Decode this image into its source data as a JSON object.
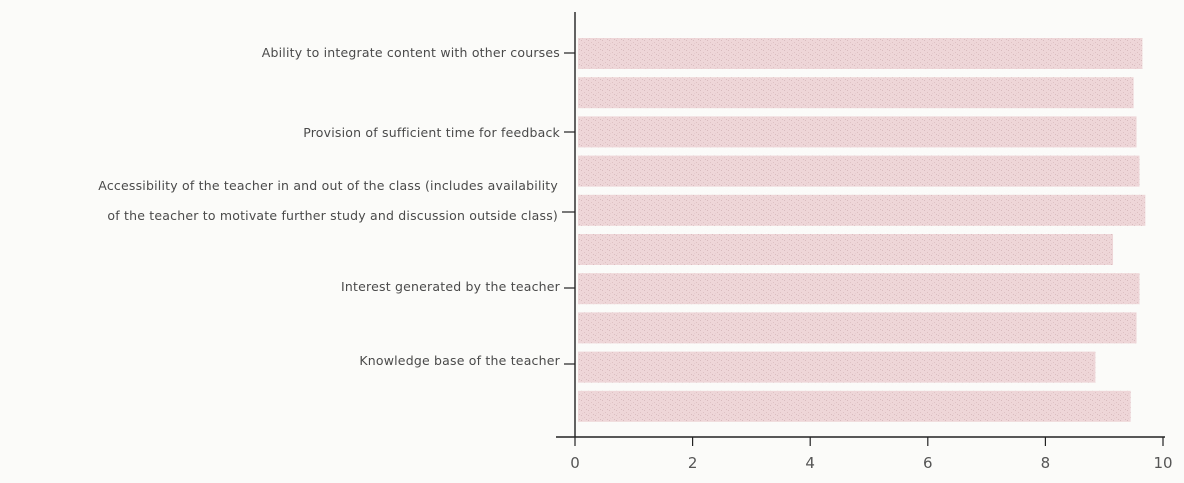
{
  "chart_data": {
    "type": "bar",
    "orientation": "horizontal",
    "title": "",
    "xlabel": "",
    "ylabel": "",
    "xlim": [
      0,
      10
    ],
    "x_ticks": [
      "0",
      "2",
      "4",
      "6",
      "8",
      "10"
    ],
    "categories": [
      "Ability to integrate content with other courses",
      "",
      "Provision of sufficient time for feedback",
      "",
      "Accessibility of the teacher in and out of the class (includes availability of the teacher to motivate further study and discussion outside class)",
      "",
      "Interest generated by the teacher",
      "",
      "Knowledge base of the teacher",
      ""
    ],
    "values": [
      9.65,
      9.5,
      9.55,
      9.6,
      9.7,
      9.15,
      9.6,
      9.55,
      8.85,
      9.45
    ],
    "bar_color": "#eed6d8",
    "grid": false,
    "legend": "none"
  },
  "labels": {
    "row0": "Ability to integrate content with other courses",
    "row2": "Provision of sufficient time for feedback",
    "row4_line1": "Accessibility of the teacher in and out of the class (includes availability",
    "row4_line2": "of the teacher to motivate further study and discussion outside class)",
    "row6": "Interest generated by the teacher",
    "row8": "Knowledge base of the teacher"
  }
}
